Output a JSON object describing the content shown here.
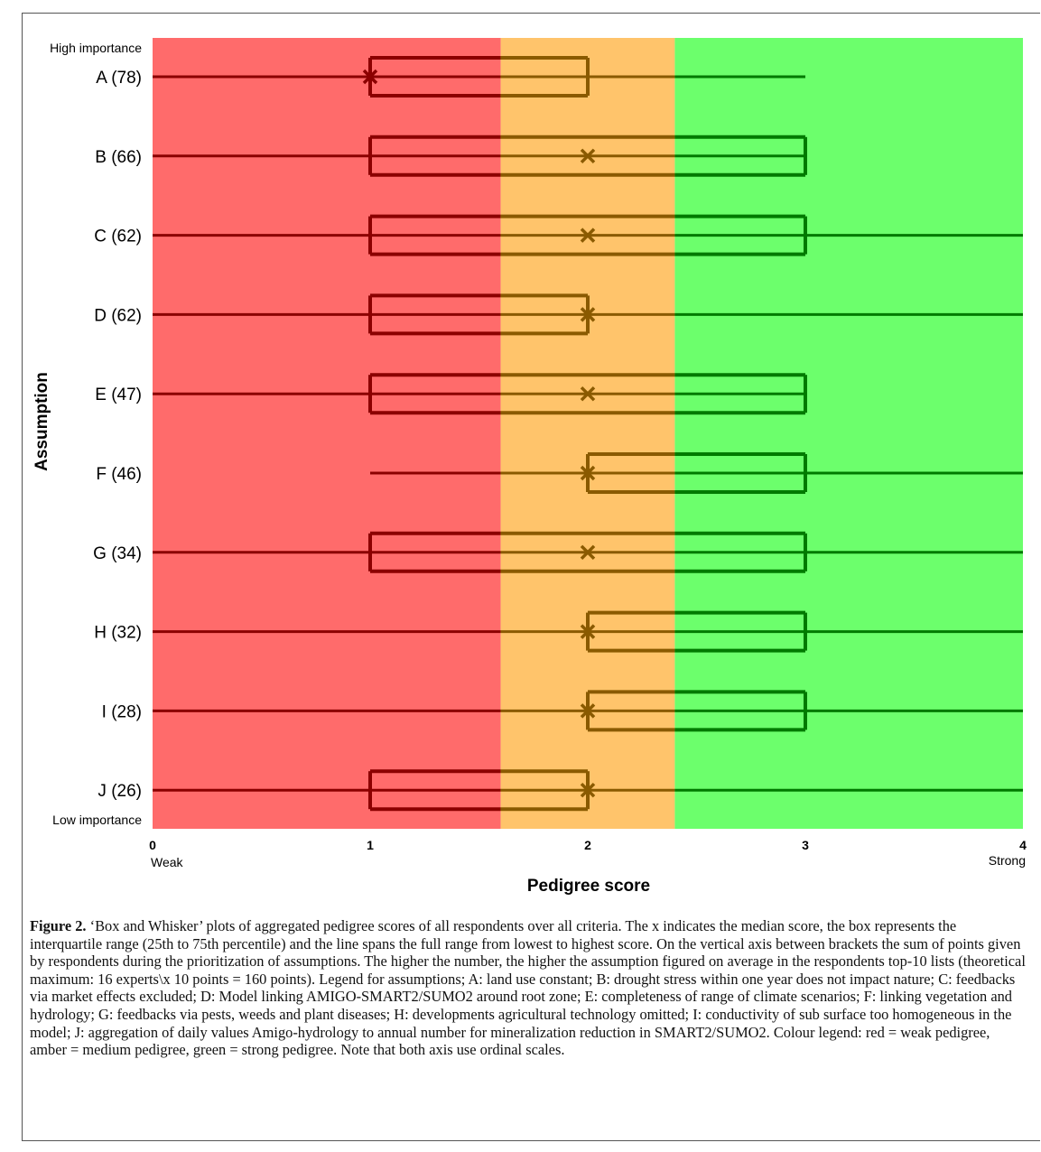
{
  "chart_data": {
    "type": "box",
    "xlabel": "Pedigree score",
    "ylabel": "Assumption",
    "xlim": [
      0,
      4
    ],
    "x_ticks": [
      0,
      1,
      2,
      3,
      4
    ],
    "x_end_labels": {
      "low": "Weak",
      "high": "Strong"
    },
    "y_end_labels": {
      "top": "High importance",
      "bottom": "Low importance"
    },
    "bands": [
      {
        "name": "weak pedigree",
        "from": 0,
        "to": 1.6,
        "color": "#ff6b6b"
      },
      {
        "name": "medium pedigree",
        "from": 1.6,
        "to": 2.4,
        "color": "#ffc46b"
      },
      {
        "name": "strong pedigree",
        "from": 2.4,
        "to": 4,
        "color": "#6cff6c"
      }
    ],
    "series": [
      {
        "label": "A (78)",
        "min": 0,
        "q1": 1,
        "median": 1,
        "q3": 2,
        "max": 3
      },
      {
        "label": "B (66)",
        "min": 0,
        "q1": 1,
        "median": 2,
        "q3": 3,
        "max": 3
      },
      {
        "label": "C (62)",
        "min": 0,
        "q1": 1,
        "median": 2,
        "q3": 3,
        "max": 4
      },
      {
        "label": "D (62)",
        "min": 0,
        "q1": 1,
        "median": 2,
        "q3": 2,
        "max": 4
      },
      {
        "label": "E (47)",
        "min": 0,
        "q1": 1,
        "median": 2,
        "q3": 3,
        "max": 3
      },
      {
        "label": "F (46)",
        "min": 1,
        "q1": 2,
        "median": 2,
        "q3": 3,
        "max": 4
      },
      {
        "label": "G (34)",
        "min": 0,
        "q1": 1,
        "median": 2,
        "q3": 3,
        "max": 4
      },
      {
        "label": "H (32)",
        "min": 0,
        "q1": 2,
        "median": 2,
        "q3": 3,
        "max": 4
      },
      {
        "label": "I (28)",
        "min": 0,
        "q1": 2,
        "median": 2,
        "q3": 3,
        "max": 4
      },
      {
        "label": "J (26)",
        "min": 0,
        "q1": 1,
        "median": 2,
        "q3": 2,
        "max": 4
      }
    ]
  },
  "caption": {
    "label": "Figure 2.",
    "text": " ‘Box and Whisker’ plots of aggregated pedigree scores of all respondents over all criteria. The x indicates the median score, the box represents the interquartile range (25th to 75th percentile) and the line spans the full range from lowest to highest score. On the vertical axis between brackets the sum of points given by respondents during the prioritization of assumptions. The higher the number, the higher the assumption figured on average in the respondents top-10 lists (theoretical maximum: 16 experts\\x 10 points = 160 points). Legend for assumptions; A: land use constant; B: drought stress within one year does not impact nature; C: feedbacks via market effects excluded; D: Model linking AMIGO-SMART2/SUMO2 around root zone; E: completeness of range of climate scenarios; F: linking vegetation and hydrology; G: feedbacks via pests, weeds and plant diseases; H: developments agricultural technology omitted; I: conductivity of sub surface too homogeneous in the model; J: aggregation of daily values Amigo-hydrology to annual number for mineralization reduction in SMART2/SUMO2. Colour legend: red = weak pedigree, amber = medium pedigree, green = strong pedigree. Note that both axis use ordinal scales."
  }
}
